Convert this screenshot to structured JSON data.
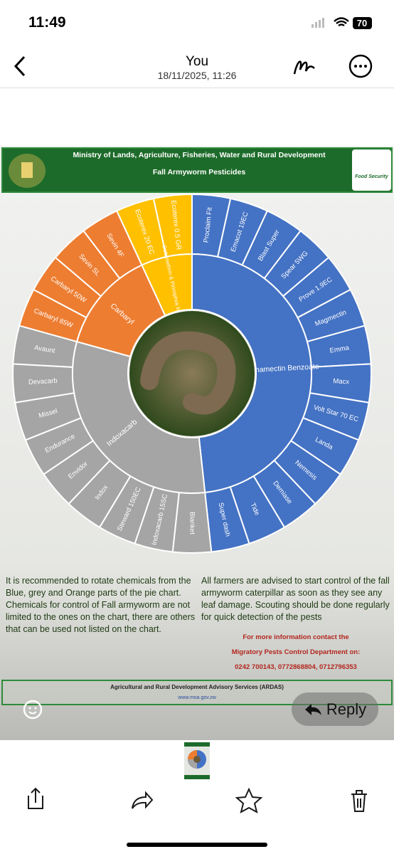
{
  "status_bar": {
    "time": "11:49",
    "battery": "70"
  },
  "header": {
    "title": "You",
    "subtitle": "18/11/2025, 11:26"
  },
  "poster": {
    "ministry": "Ministry of Lands, Agriculture, Fisheries, Water and Rural Development",
    "title": "Fall Armyworm Pesticides",
    "badge": "Food Security",
    "groups": [
      {
        "name": "Emamectin Benzoate",
        "color": "#4472c4",
        "products": [
          "Proclaim Fit",
          "Emacot 19EC",
          "Blast Super",
          "Spear 5WG",
          "Prove 1.9EC",
          "Magmectin",
          "Emma",
          "Macx",
          "Volt Star 70 EC",
          "Landa",
          "Nemesis",
          "Demiase",
          "Tide",
          "Super dash"
        ]
      },
      {
        "name": "Indoxacarb",
        "color": "#a5a5a5",
        "products": [
          "Blanket",
          "Indoxacarb 15SC",
          "Steward 150EC",
          "Indox",
          "Envidor",
          "Endurance",
          "Missel",
          "Devacarb",
          "Avaunt"
        ]
      },
      {
        "name": "Carbaryl",
        "color": "#ed7d31",
        "products": [
          "Carbaryl 85W",
          "Carbaryl 50W",
          "Sevin SL",
          "Sevin 4F"
        ]
      },
      {
        "name": "Deltamethrin & Pirimiphos Methyl",
        "color": "#ffc000",
        "products": [
          "Ecoterex 20 EC",
          "Ecoterex 0.5 GR"
        ]
      }
    ],
    "left_note": "It is recommended to rotate chemicals from the Blue, grey and Orange parts of the pie chart. Chemicals for control of Fall armyworm are not limited to the ones on the chart, there are others that can be used not listed on the chart.",
    "right_note": "All farmers are advised to start control of the fall armyworm caterpillar as soon as they see any leaf damage. Scouting should be done regularly for quick detection of the pests",
    "contact": [
      "For more information contact the",
      "Migratory Pests Control Department on:",
      "0242 700143, 0772868804, 0712796353"
    ],
    "footer": "Agricultural and Rural Development Advisory Services (ARDAS)",
    "website": "www.moa.gov.zw"
  },
  "reply": "Reply"
}
